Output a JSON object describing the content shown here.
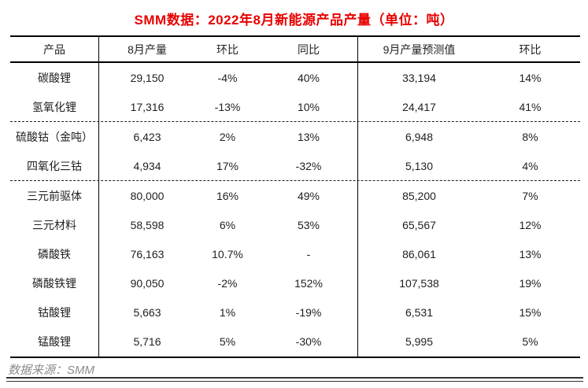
{
  "title": "SMM数据：2022年8月新能源产品产量（单位：吨）",
  "source_note": "数据来源：SMM",
  "colors": {
    "title": "#e80000",
    "body_text": "#1f1f1f",
    "source_text": "#8c8c8c",
    "rule": "#000000"
  },
  "chart_data": {
    "type": "table",
    "title": "SMM数据：2022年8月新能源产品产量（单位：吨）",
    "columns": [
      "产品",
      "8月产量",
      "环比",
      "同比",
      "9月产量预测值",
      "环比"
    ],
    "rows": [
      {
        "cells": [
          "碳酸锂",
          "29,150",
          "-4%",
          "40%",
          "33,194",
          "14%"
        ],
        "divider_below": false
      },
      {
        "cells": [
          "氢氧化锂",
          "17,316",
          "-13%",
          "10%",
          "24,417",
          "41%"
        ],
        "divider_below": true
      },
      {
        "cells": [
          "硫酸钴（金吨）",
          "6,423",
          "2%",
          "13%",
          "6,948",
          "8%"
        ],
        "divider_below": false
      },
      {
        "cells": [
          "四氧化三钴",
          "4,934",
          "17%",
          "-32%",
          "5,130",
          "4%"
        ],
        "divider_below": true
      },
      {
        "cells": [
          "三元前驱体",
          "80,000",
          "16%",
          "49%",
          "85,200",
          "7%"
        ],
        "divider_below": false
      },
      {
        "cells": [
          "三元材料",
          "58,598",
          "6%",
          "53%",
          "65,567",
          "12%"
        ],
        "divider_below": false
      },
      {
        "cells": [
          "磷酸铁",
          "76,163",
          "10.7%",
          "-",
          "86,061",
          "13%"
        ],
        "divider_below": false
      },
      {
        "cells": [
          "磷酸铁锂",
          "90,050",
          "-2%",
          "152%",
          "107,538",
          "19%"
        ],
        "divider_below": false
      },
      {
        "cells": [
          "钴酸锂",
          "5,663",
          "1%",
          "-19%",
          "6,531",
          "15%"
        ],
        "divider_below": false
      },
      {
        "cells": [
          "锰酸锂",
          "5,716",
          "5%",
          "-30%",
          "5,995",
          "5%"
        ],
        "divider_below": false
      }
    ],
    "source": "数据来源：SMM",
    "layout": {
      "legend": "none",
      "grid": "partial-dashed"
    }
  }
}
